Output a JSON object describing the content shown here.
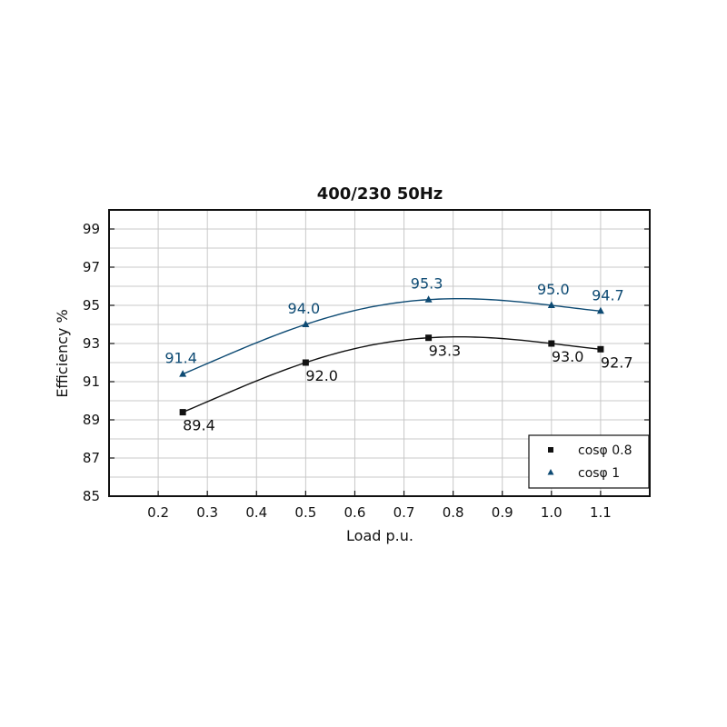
{
  "chart_data": {
    "type": "line",
    "title": "400/230 50Hz",
    "xlabel": "Load p.u.",
    "ylabel": "Efficiency %",
    "xlim": [
      0.1,
      1.2
    ],
    "ylim": [
      85,
      100
    ],
    "x_ticks": [
      "0.2",
      "0.3",
      "0.4",
      "0.5",
      "0.6",
      "0.7",
      "0.8",
      "0.9",
      "1.0",
      "1.1"
    ],
    "x_tick_values": [
      0.2,
      0.3,
      0.4,
      0.5,
      0.6,
      0.7,
      0.8,
      0.9,
      1.0,
      1.1
    ],
    "y_ticks": [
      "85",
      "87",
      "89",
      "91",
      "93",
      "95",
      "97",
      "99"
    ],
    "y_tick_values": [
      85,
      87,
      89,
      91,
      93,
      95,
      97,
      99
    ],
    "grid": true,
    "legend_position": "bottom-right",
    "series": [
      {
        "name": "cosφ 0.8",
        "marker": "square",
        "color": "#111111",
        "x": [
          0.25,
          0.5,
          0.75,
          1.0,
          1.1
        ],
        "y": [
          89.4,
          92.0,
          93.3,
          93.0,
          92.7
        ],
        "labels": [
          "89.4",
          "92.0",
          "93.3",
          "93.0",
          "92.7"
        ]
      },
      {
        "name": "cosφ 1",
        "marker": "triangle",
        "color": "#0d4a73",
        "x": [
          0.25,
          0.5,
          0.75,
          1.0,
          1.1
        ],
        "y": [
          91.4,
          94.0,
          95.3,
          95.0,
          94.7
        ],
        "labels": [
          "91.4",
          "94.0",
          "95.3",
          "95.0",
          "94.7"
        ]
      }
    ]
  }
}
